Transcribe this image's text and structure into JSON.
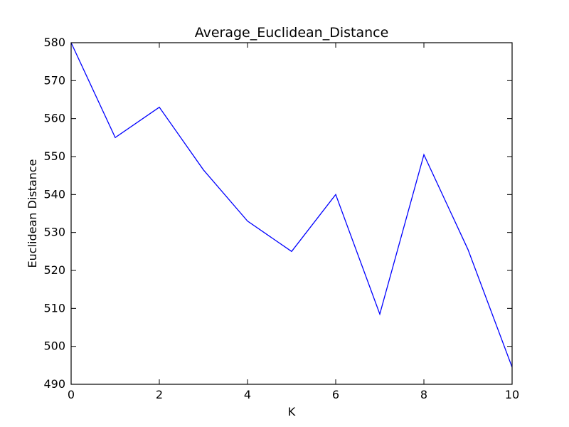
{
  "chart_data": {
    "type": "line",
    "title": "Average_Euclidean_Distance",
    "xlabel": "K",
    "ylabel": "Euclidean Distance",
    "xlim": [
      0,
      10
    ],
    "ylim": [
      490,
      580
    ],
    "xticks": [
      0,
      2,
      4,
      6,
      8,
      10
    ],
    "yticks": [
      490,
      500,
      510,
      520,
      530,
      540,
      550,
      560,
      570,
      580
    ],
    "grid": false,
    "series": [
      {
        "name": "Average_Euclidean_Distance",
        "color": "#0000ff",
        "x": [
          0,
          1,
          2,
          3,
          4,
          5,
          6,
          7,
          8,
          9,
          10
        ],
        "y": [
          580,
          555,
          563,
          546.5,
          533,
          525,
          540,
          508.5,
          550.5,
          525.5,
          494.5
        ]
      }
    ]
  }
}
